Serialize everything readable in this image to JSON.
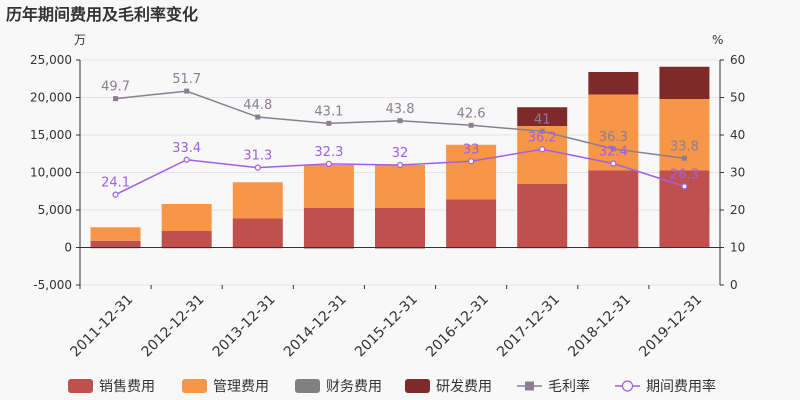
{
  "chart_data": {
    "type": "bar",
    "title": "历年期间费用及毛利率变化",
    "left_unit": "万",
    "right_unit": "%",
    "categories": [
      "2011-12-31",
      "2012-12-31",
      "2013-12-31",
      "2014-12-31",
      "2015-12-31",
      "2016-12-31",
      "2017-12-31",
      "2018-12-31",
      "2019-12-31"
    ],
    "left_ticks": [
      "-5,000",
      "0",
      "5,000",
      "10,000",
      "15,000",
      "20,000",
      "25,000"
    ],
    "right_ticks": [
      "0",
      "10",
      "20",
      "30",
      "40",
      "50",
      "60"
    ],
    "ylim_left": [
      -5000,
      25000
    ],
    "ylim_right": [
      0,
      60
    ],
    "stack_series": [
      {
        "name": "销售费用",
        "color": "#c0504d",
        "values": [
          900,
          2200,
          3900,
          5300,
          5300,
          6400,
          8500,
          10300,
          10300
        ]
      },
      {
        "name": "管理费用",
        "color": "#f79646",
        "values": [
          1800,
          3600,
          4800,
          5700,
          5700,
          7300,
          7700,
          10100,
          9500
        ]
      },
      {
        "name": "财务费用",
        "color": "#808080",
        "values": [
          -50,
          -50,
          -50,
          -150,
          -150,
          -100,
          -50,
          -50,
          0
        ]
      },
      {
        "name": "研发费用",
        "color": "#7f2a2a",
        "values": [
          0,
          0,
          0,
          0,
          0,
          0,
          2500,
          3000,
          4300
        ]
      }
    ],
    "line_series": [
      {
        "name": "毛利率",
        "color": "#8a7f90",
        "marker": "square",
        "values": [
          49.7,
          51.7,
          44.8,
          43.1,
          43.8,
          42.6,
          41,
          36.3,
          33.8
        ],
        "labels": [
          "49.7",
          "51.7",
          "44.8",
          "43.1",
          "43.8",
          "42.6",
          "41",
          "36.3",
          "33.8"
        ]
      },
      {
        "name": "期间费用率",
        "color": "#a35ee6",
        "marker": "circle",
        "values": [
          24.1,
          33.4,
          31.3,
          32.3,
          32,
          33,
          36.2,
          32.4,
          26.3
        ],
        "labels": [
          "24.1",
          "33.4",
          "31.3",
          "32.3",
          "32",
          "33",
          "36.2",
          "32.4",
          "26.3"
        ]
      }
    ],
    "legend": [
      "销售费用",
      "管理费用",
      "财务费用",
      "研发费用",
      "毛利率",
      "期间费用率"
    ],
    "legend_position": "bottom",
    "grid": true
  }
}
